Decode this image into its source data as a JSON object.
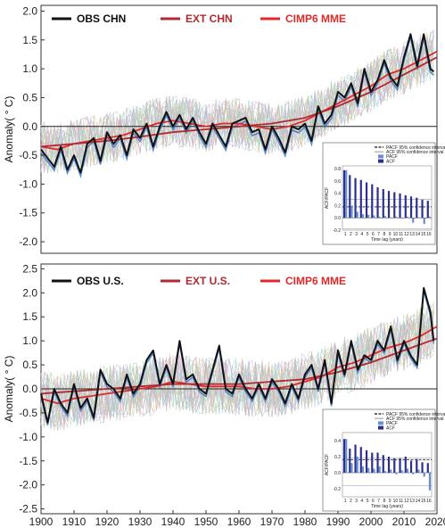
{
  "chart_data": [
    {
      "type": "line",
      "panel": "top",
      "ylabel": "Anomaly( ° C)",
      "ylim": [
        -2.2,
        2.1
      ],
      "yticks": [
        "2.0",
        "1.5",
        "1.0",
        "0.5",
        "0.0",
        "-0.5",
        "-1.0",
        "-1.5",
        "-2.0"
      ],
      "xlim": [
        1900,
        2020
      ],
      "grid": false,
      "legend": [
        {
          "label": "OBS CHN",
          "color": "#111111"
        },
        {
          "label": "EXT CHN",
          "color": "#b22a30"
        },
        {
          "label": "CIMP6 MME",
          "color": "#e0292a"
        }
      ],
      "series": [
        {
          "name": "OBS CHN",
          "color": "#111111",
          "x": [
            1900,
            1902,
            1904,
            1906,
            1908,
            1910,
            1912,
            1914,
            1916,
            1918,
            1920,
            1922,
            1924,
            1926,
            1928,
            1930,
            1932,
            1934,
            1936,
            1938,
            1940,
            1942,
            1944,
            1946,
            1948,
            1950,
            1952,
            1954,
            1956,
            1958,
            1960,
            1962,
            1964,
            1966,
            1968,
            1970,
            1972,
            1974,
            1976,
            1978,
            1980,
            1982,
            1984,
            1986,
            1988,
            1990,
            1992,
            1994,
            1996,
            1998,
            2000,
            2002,
            2004,
            2006,
            2008,
            2010,
            2012,
            2014,
            2016,
            2018,
            2019
          ],
          "y": [
            -0.4,
            -0.55,
            -0.7,
            -0.35,
            -0.75,
            -0.5,
            -0.8,
            -0.3,
            -0.2,
            -0.6,
            -0.1,
            -0.3,
            -0.15,
            -0.5,
            -0.05,
            -0.2,
            0.05,
            -0.35,
            0.0,
            0.25,
            0.0,
            0.2,
            -0.05,
            0.15,
            -0.1,
            -0.3,
            0.05,
            -0.15,
            -0.35,
            0.05,
            0.1,
            0.15,
            -0.1,
            -0.05,
            -0.4,
            0.0,
            -0.2,
            -0.45,
            0.0,
            -0.05,
            0.05,
            -0.25,
            0.35,
            0.05,
            0.2,
            0.6,
            0.5,
            0.75,
            0.4,
            1.0,
            0.6,
            0.8,
            1.15,
            0.85,
            0.7,
            1.2,
            1.6,
            1.05,
            1.6,
            1.0,
            0.95
          ]
        },
        {
          "name": "EXT CHN",
          "color": "#b22a30",
          "x": [
            1900,
            1910,
            1920,
            1930,
            1940,
            1950,
            1960,
            1970,
            1980,
            1990,
            2000,
            2010,
            2020
          ],
          "y": [
            -0.35,
            -0.3,
            -0.25,
            -0.18,
            -0.1,
            -0.05,
            0.0,
            0.05,
            0.15,
            0.35,
            0.6,
            0.9,
            1.2
          ]
        },
        {
          "name": "CIMP6 MME",
          "color": "#e0292a",
          "x": [
            1900,
            1905,
            1910,
            1915,
            1920,
            1925,
            1930,
            1935,
            1940,
            1945,
            1950,
            1955,
            1960,
            1965,
            1970,
            1975,
            1980,
            1985,
            1990,
            1995,
            2000,
            2005,
            2010,
            2015,
            2020
          ],
          "y": [
            -0.35,
            -0.4,
            -0.3,
            -0.25,
            -0.2,
            -0.15,
            -0.05,
            0.05,
            0.1,
            0.05,
            0.0,
            0.05,
            0.05,
            0.0,
            -0.05,
            0.0,
            0.1,
            0.25,
            0.4,
            0.55,
            0.7,
            0.9,
            1.0,
            1.15,
            1.3
          ]
        }
      ],
      "inset": {
        "type": "bar",
        "ylabel": "ACF/PACF",
        "xlabel": "Time lag (years)",
        "categories": [
          "1",
          "2",
          "3",
          "4",
          "5",
          "6",
          "7",
          "8",
          "9",
          "10",
          "11",
          "12",
          "13",
          "14",
          "15",
          "16"
        ],
        "ylim": [
          -0.2,
          0.85
        ],
        "yticks": [
          "0.8",
          "0.6",
          "0.4",
          "0.2",
          "0.0",
          "-0.2"
        ],
        "legend": [
          "PACF 95% confidence interval",
          "ACF 95% confidence interval",
          "PACF",
          "ACF"
        ],
        "acf_color": "#2b2f8f",
        "pacf_color": "#6a8fd0",
        "series": [
          {
            "name": "ACF",
            "values": [
              0.78,
              0.7,
              0.65,
              0.62,
              0.58,
              0.55,
              0.5,
              0.47,
              0.44,
              0.42,
              0.4,
              0.37,
              0.35,
              0.33,
              0.3,
              0.28
            ]
          },
          {
            "name": "PACF",
            "values": [
              0.78,
              0.2,
              0.1,
              0.06,
              0.05,
              0.04,
              0.02,
              0.03,
              0.01,
              0.02,
              -0.01,
              0.02,
              -0.08,
              0.01,
              -0.1,
              0.02
            ]
          }
        ],
        "acf_ci": 0.3,
        "pacf_ci": 0.18
      }
    },
    {
      "type": "line",
      "panel": "bottom",
      "ylabel": "Anomaly( ° C)",
      "ylim": [
        -2.6,
        2.6
      ],
      "yticks": [
        "2.5",
        "2.0",
        "1.5",
        "1.0",
        "0.5",
        "0.0",
        "-0.5",
        "-1.0",
        "-1.5",
        "-2.0",
        "-2.5"
      ],
      "xlim": [
        1900,
        2020
      ],
      "xticks": [
        "1900",
        "1910",
        "1920",
        "1930",
        "1940",
        "1950",
        "1960",
        "1970",
        "1980",
        "1990",
        "2000",
        "2010",
        "2020"
      ],
      "grid": false,
      "legend": [
        {
          "label": "OBS U.S.",
          "color": "#111111"
        },
        {
          "label": "EXT U.S.",
          "color": "#b22a30"
        },
        {
          "label": "CIMP6 MME",
          "color": "#e0292a"
        }
      ],
      "series": [
        {
          "name": "OBS U.S.",
          "color": "#111111",
          "x": [
            1900,
            1902,
            1904,
            1906,
            1908,
            1910,
            1912,
            1914,
            1916,
            1918,
            1920,
            1922,
            1924,
            1926,
            1928,
            1930,
            1932,
            1934,
            1936,
            1938,
            1940,
            1942,
            1944,
            1946,
            1948,
            1950,
            1952,
            1954,
            1956,
            1958,
            1960,
            1962,
            1964,
            1966,
            1968,
            1970,
            1972,
            1974,
            1976,
            1978,
            1980,
            1982,
            1984,
            1986,
            1988,
            1990,
            1992,
            1994,
            1996,
            1998,
            2000,
            2002,
            2004,
            2006,
            2008,
            2010,
            2012,
            2014,
            2016,
            2018,
            2019
          ],
          "y": [
            -0.1,
            -0.7,
            0.0,
            -0.3,
            -0.5,
            0.1,
            -0.4,
            -0.2,
            -0.6,
            0.4,
            0.1,
            0.0,
            -0.2,
            0.3,
            -0.1,
            0.1,
            0.6,
            0.8,
            0.1,
            0.5,
            0.1,
            1.0,
            0.2,
            0.3,
            0.0,
            -0.1,
            0.4,
            0.9,
            0.0,
            -0.1,
            0.3,
            0.0,
            -0.2,
            0.1,
            -0.2,
            0.2,
            0.0,
            -0.3,
            0.1,
            -0.2,
            0.3,
            0.5,
            0.0,
            0.6,
            -0.3,
            0.8,
            0.3,
            1.0,
            0.4,
            0.7,
            0.6,
            1.0,
            0.8,
            1.3,
            0.6,
            1.0,
            0.7,
            0.5,
            2.1,
            1.6,
            1.0
          ]
        },
        {
          "name": "EXT U.S.",
          "color": "#b22a30",
          "x": [
            1900,
            1910,
            1920,
            1930,
            1940,
            1950,
            1960,
            1970,
            1980,
            1990,
            2000,
            2010,
            2020
          ],
          "y": [
            -0.1,
            -0.05,
            0.0,
            0.05,
            0.1,
            0.1,
            0.1,
            0.15,
            0.2,
            0.35,
            0.55,
            0.8,
            1.05
          ]
        },
        {
          "name": "CIMP6 MME",
          "color": "#e0292a",
          "x": [
            1900,
            1905,
            1910,
            1915,
            1920,
            1925,
            1930,
            1935,
            1940,
            1945,
            1950,
            1955,
            1960,
            1965,
            1970,
            1975,
            1980,
            1985,
            1990,
            1995,
            2000,
            2005,
            2010,
            2015,
            2020
          ],
          "y": [
            -0.2,
            -0.3,
            -0.2,
            -0.15,
            -0.1,
            -0.05,
            0.0,
            0.05,
            0.15,
            0.1,
            0.05,
            0.05,
            0.05,
            0.0,
            0.0,
            0.05,
            0.15,
            0.25,
            0.45,
            0.55,
            0.7,
            0.85,
            0.95,
            1.1,
            1.3
          ]
        }
      ],
      "inset": {
        "type": "bar",
        "ylabel": "ACF/PACF",
        "xlabel": "Time lag (years)",
        "categories": [
          "1",
          "2",
          "3",
          "4",
          "5",
          "6",
          "7",
          "8",
          "9",
          "10",
          "11",
          "12",
          "13",
          "14",
          "15",
          "16"
        ],
        "ylim": [
          -0.3,
          0.5
        ],
        "yticks": [
          "0.4",
          "0.2",
          "0.0",
          "-0.2"
        ],
        "legend": [
          "PACF 95% confidence interval",
          "ACF 95% confidence interval",
          "PACF",
          "ACF"
        ],
        "acf_color": "#2b2f8f",
        "pacf_color": "#6a8fd0",
        "series": [
          {
            "name": "ACF",
            "values": [
              0.42,
              0.3,
              0.35,
              0.32,
              0.28,
              0.25,
              0.25,
              0.22,
              0.2,
              0.18,
              0.18,
              0.2,
              0.15,
              0.17,
              0.13,
              0.12
            ]
          },
          {
            "name": "PACF",
            "values": [
              0.42,
              0.12,
              0.2,
              0.08,
              0.06,
              0.05,
              0.08,
              0.02,
              0.04,
              -0.02,
              0.03,
              0.05,
              -0.02,
              0.04,
              -0.05,
              -0.22
            ]
          }
        ],
        "acf_ci": 0.18,
        "pacf_ci": 0.16
      }
    }
  ]
}
